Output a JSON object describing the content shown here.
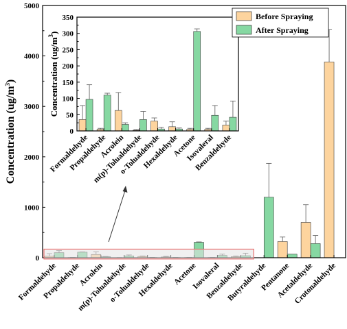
{
  "colors": {
    "before": "#FDD49E",
    "after": "#86D8A2",
    "highlight_fill": "#E4E4E4",
    "highlight_stroke": "#E8706F"
  },
  "chart_data": [
    {
      "type": "bar",
      "ylabel": "Concentration (ug/m",
      "ylabel_sup": "3",
      "ylabel_close": ")",
      "ylim": [
        0,
        5000
      ],
      "yticks": [
        "0",
        "1000",
        "2000",
        "3000",
        "4000",
        "5000"
      ],
      "categories": [
        "Formaldehyde",
        "Propaldehyde",
        "Acrolein",
        "m(p)-Tolualdehyde",
        "o-Tolualdehyde",
        "Hexaldehyde",
        "Acetone",
        "Isovaleral",
        "Benzaldehyde",
        "Butyraldehyde",
        "Pentanone",
        "Acetaldehyde",
        "Crotonaldehyde"
      ],
      "series": [
        {
          "name": "Before Spraying",
          "values": [
            30,
            5,
            65,
            2,
            25,
            15,
            5,
            5,
            20,
            0,
            320,
            700,
            3880
          ],
          "errors": [
            50,
            3,
            50,
            2,
            10,
            12,
            3,
            3,
            15,
            0,
            90,
            350,
            640
          ]
        },
        {
          "name": "After Spraying",
          "values": [
            100,
            110,
            20,
            35,
            5,
            5,
            305,
            45,
            40,
            1200,
            70,
            280,
            0
          ],
          "errors": [
            40,
            5,
            5,
            20,
            3,
            2,
            8,
            25,
            50,
            670,
            0,
            160,
            0
          ]
        }
      ],
      "legend_position": "top-right"
    },
    {
      "type": "bar",
      "ylabel": "Concentration (ug/m",
      "ylabel_sup": "3",
      "ylabel_close": ")",
      "ylim": [
        0,
        350
      ],
      "yticks": [
        "0",
        "50",
        "100",
        "150",
        "200",
        "250",
        "300",
        "350"
      ],
      "categories": [
        "Formaldehyde",
        "Propaldehyde",
        "Acrolein",
        "m(p)-Tolualdehyde",
        "o-Tolualdehyde",
        "Hexaldehyde",
        "Acetone",
        "Isovaleral",
        "Benzaldehyde"
      ],
      "series": [
        {
          "name": "Before Spraying",
          "values": [
            35,
            5,
            63,
            2,
            30,
            13,
            5,
            5,
            18
          ],
          "errors": [
            43,
            3,
            55,
            2,
            10,
            15,
            3,
            3,
            12
          ]
        },
        {
          "name": "After Spraying",
          "values": [
            97,
            110,
            20,
            35,
            6,
            6,
            306,
            48,
            42
          ],
          "errors": [
            45,
            6,
            5,
            25,
            5,
            3,
            8,
            30,
            50
          ]
        }
      ]
    }
  ]
}
